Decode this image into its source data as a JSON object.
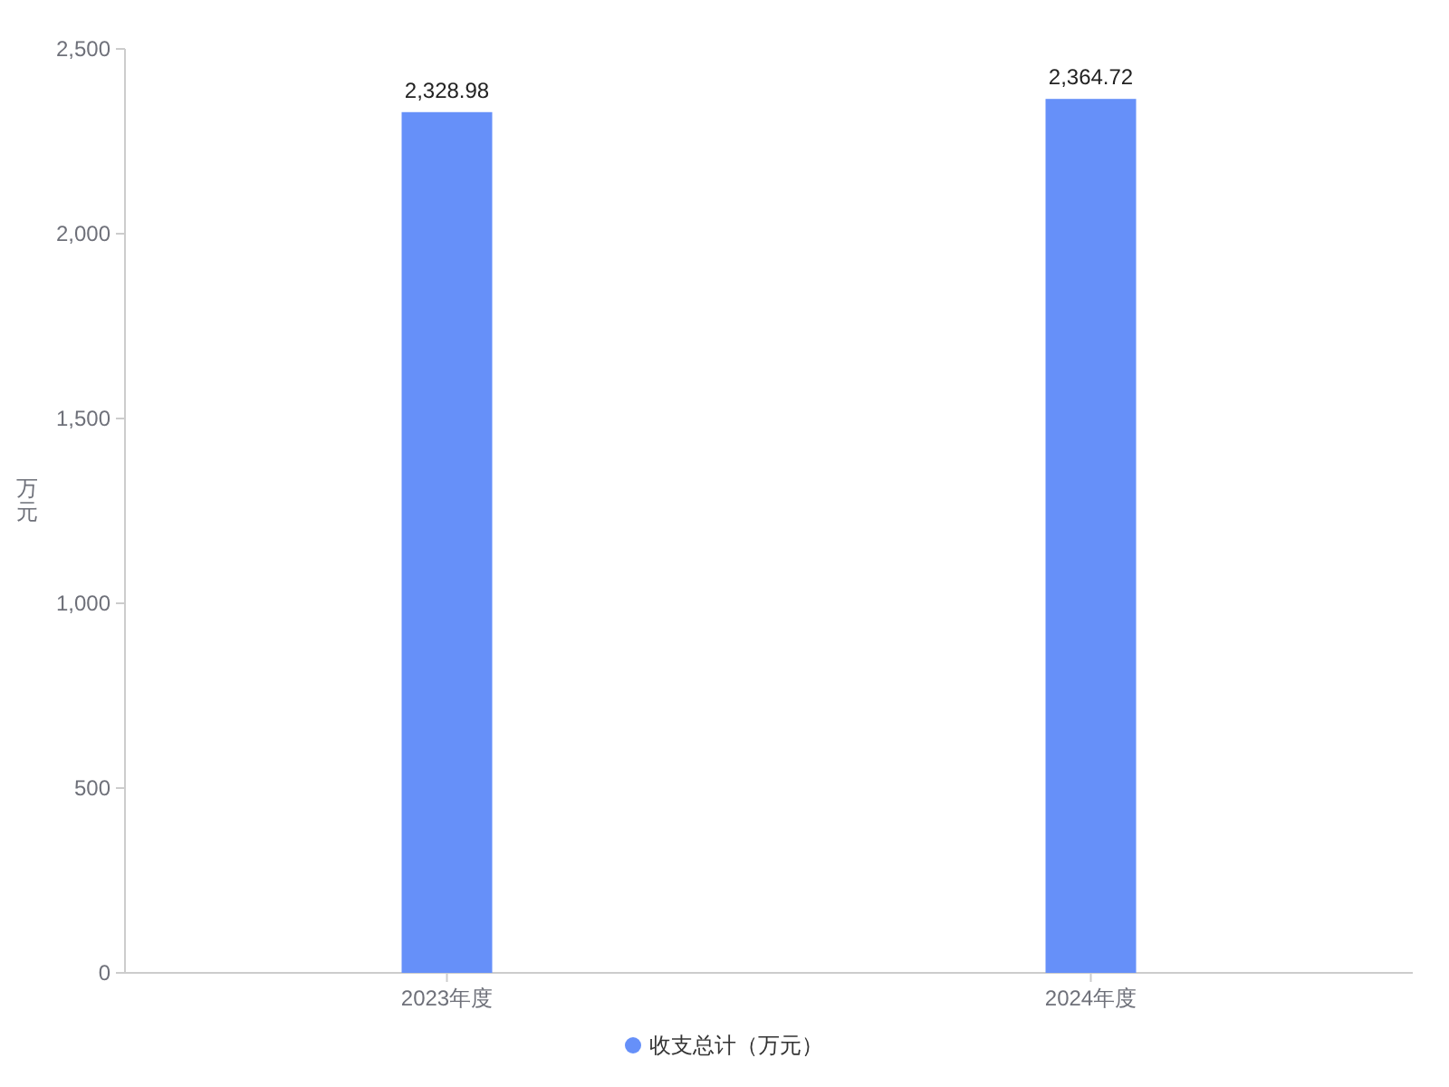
{
  "chart_data": {
    "type": "bar",
    "ylabel": "万元",
    "categories": [
      "2023年度",
      "2024年度"
    ],
    "series": [
      {
        "name": "收支总计（万元）",
        "color": "#6690f9",
        "values": [
          2328.98,
          2364.72
        ],
        "value_labels": [
          "2,328.98",
          "2,364.72"
        ]
      }
    ],
    "ylim": [
      0,
      2500
    ],
    "yticks": [
      0,
      500,
      {
        "value": 1000,
        "label": "1,000"
      },
      {
        "value": 1500,
        "label": "1,500"
      },
      {
        "value": 2000,
        "label": "2,000"
      },
      {
        "value": 2500,
        "label": "2,500"
      }
    ],
    "legend": "bottom",
    "grid": false
  }
}
